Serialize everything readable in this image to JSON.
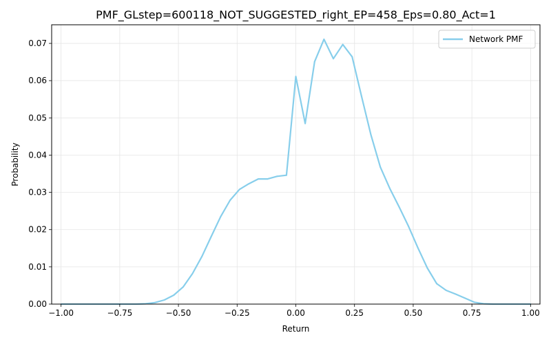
{
  "chart_data": {
    "type": "line",
    "title": "PMF_GLstep=600118_NOT_SUGGESTED_right_EP=458_Eps=0.80_Act=1",
    "xlabel": "Return",
    "ylabel": "Probability",
    "xlim": [
      -1.04,
      1.04
    ],
    "ylim": [
      0,
      0.075
    ],
    "x_ticks": [
      -1.0,
      -0.75,
      -0.5,
      -0.25,
      0.0,
      0.25,
      0.5,
      0.75,
      1.0
    ],
    "x_tick_labels": [
      "−1.00",
      "−0.75",
      "−0.50",
      "−0.25",
      "0.00",
      "0.25",
      "0.50",
      "0.75",
      "1.00"
    ],
    "y_ticks": [
      0,
      0.01,
      0.02,
      0.03,
      0.04,
      0.05,
      0.06,
      0.07
    ],
    "y_tick_labels": [
      "0.00",
      "0.01",
      "0.02",
      "0.03",
      "0.04",
      "0.05",
      "0.06",
      "0.07"
    ],
    "grid": true,
    "legend_position": "top-right",
    "series": [
      {
        "name": "Network PMF",
        "color": "#87ceeb",
        "x": [
          -1.0,
          -0.96,
          -0.92,
          -0.88,
          -0.84,
          -0.8,
          -0.76,
          -0.72,
          -0.68,
          -0.64,
          -0.6,
          -0.56,
          -0.52,
          -0.48,
          -0.44,
          -0.4,
          -0.36,
          -0.32,
          -0.28,
          -0.24,
          -0.2,
          -0.16,
          -0.12,
          -0.08,
          -0.04,
          0.0,
          0.04,
          0.08,
          0.12,
          0.16,
          0.2,
          0.24,
          0.28,
          0.32,
          0.36,
          0.4,
          0.44,
          0.48,
          0.52,
          0.56,
          0.6,
          0.64,
          0.68,
          0.72,
          0.76,
          0.8,
          0.84,
          0.88,
          0.92,
          0.96,
          1.0
        ],
        "y": [
          0.0,
          0.0,
          0.0,
          0.0,
          0.0,
          0.0,
          0.0,
          0.0,
          0.0,
          0.0001,
          0.0004,
          0.0011,
          0.0024,
          0.0046,
          0.0082,
          0.0128,
          0.0182,
          0.0235,
          0.0279,
          0.0308,
          0.0323,
          0.0336,
          0.0336,
          0.0343,
          0.0346,
          0.0611,
          0.0485,
          0.0651,
          0.0711,
          0.0659,
          0.0697,
          0.0664,
          0.0558,
          0.0454,
          0.0368,
          0.0311,
          0.0261,
          0.0209,
          0.0151,
          0.0097,
          0.0055,
          0.0037,
          0.0027,
          0.0016,
          0.0005,
          0.0001,
          0.0,
          0.0,
          0.0,
          0.0,
          0.0
        ]
      }
    ]
  }
}
